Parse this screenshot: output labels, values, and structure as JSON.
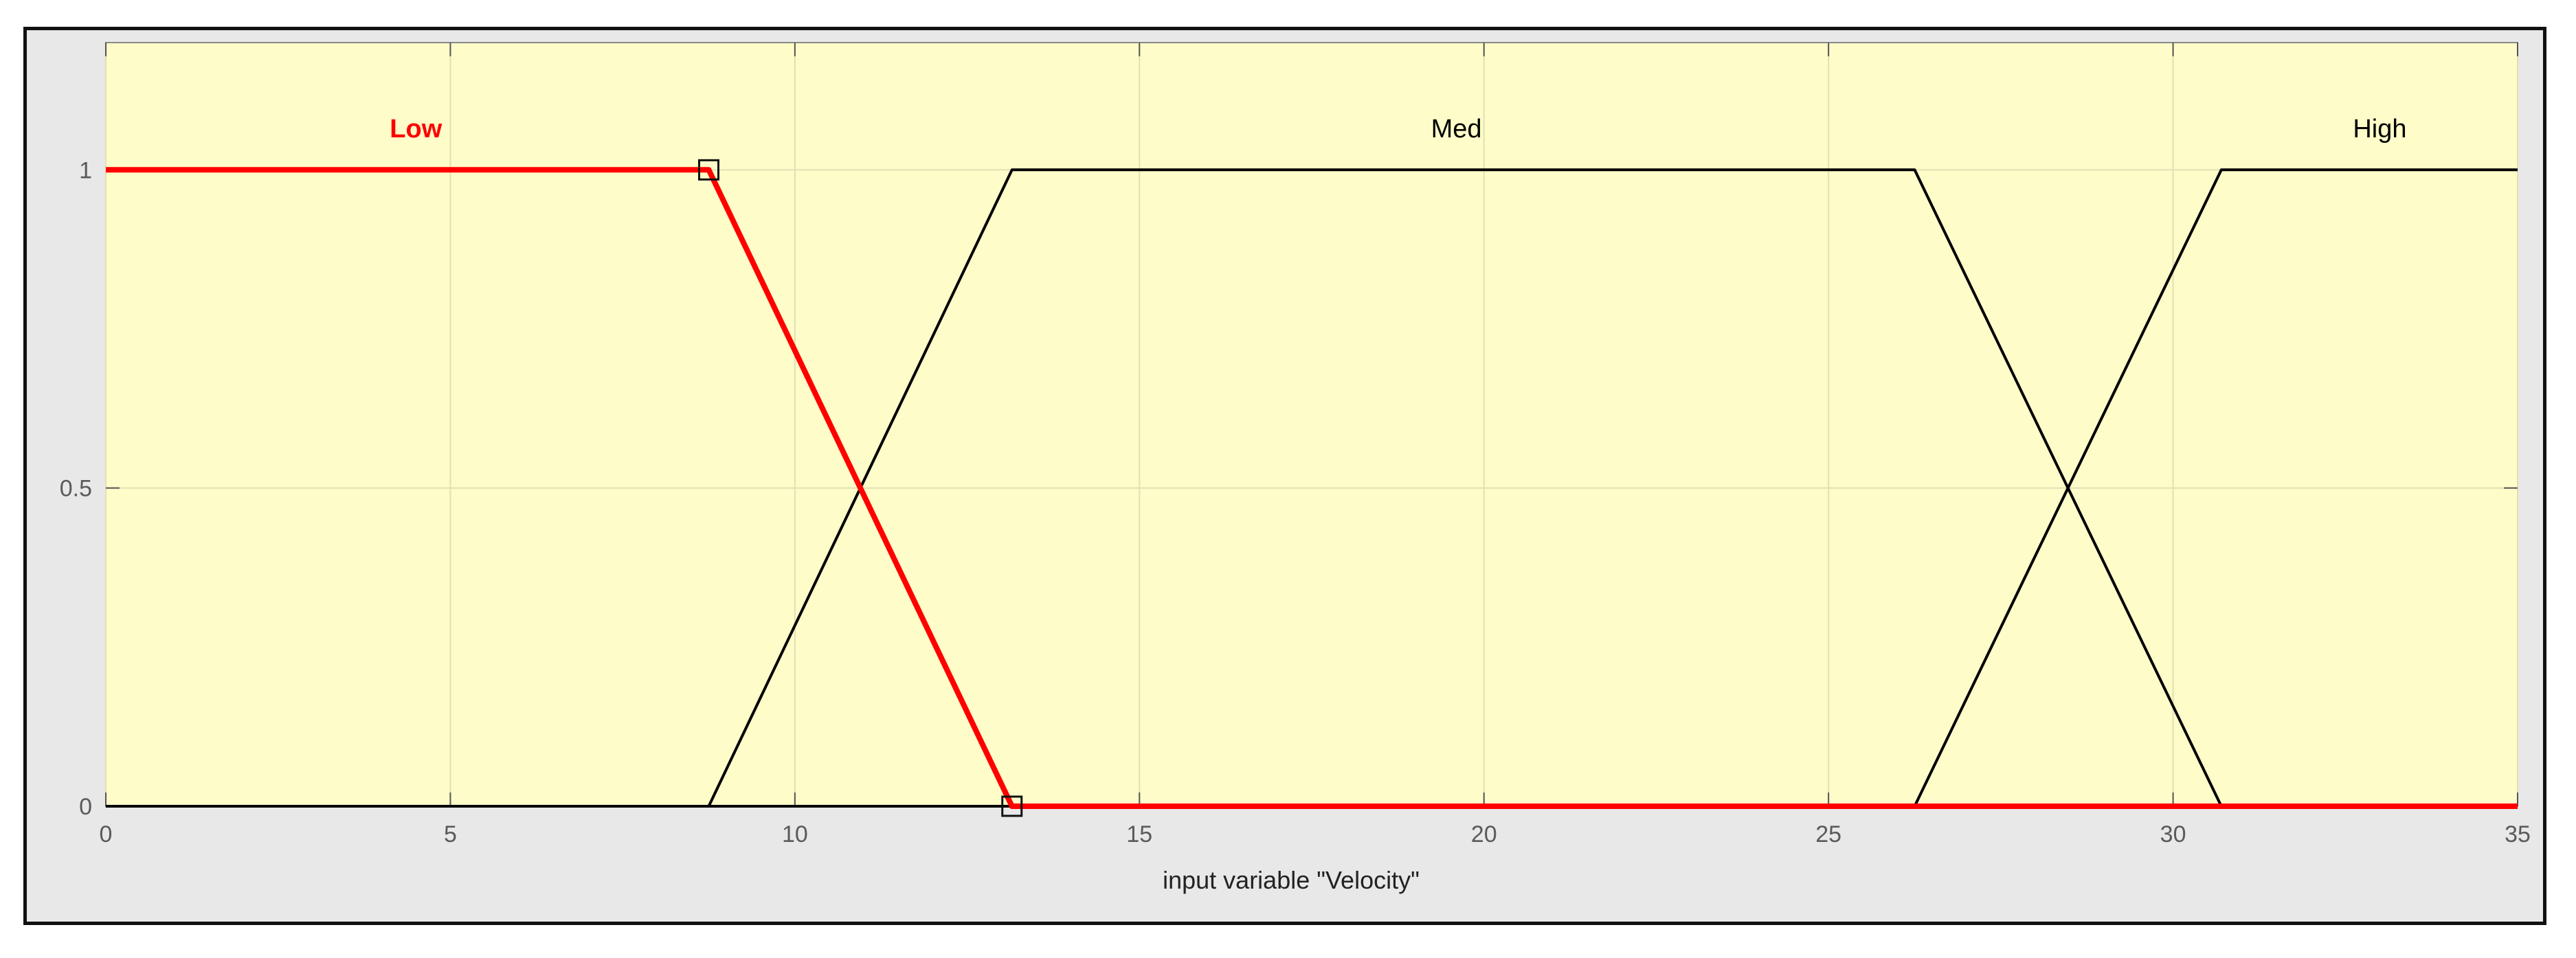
{
  "chart_data": {
    "type": "line",
    "xlabel": "input variable \"Velocity\"",
    "ylabel": "",
    "xlim": [
      0,
      35
    ],
    "ylim": [
      0,
      1.2
    ],
    "x_ticks": [
      0,
      5,
      10,
      15,
      20,
      25,
      30,
      35
    ],
    "y_ticks": [
      0,
      0.5,
      1
    ],
    "grid": true,
    "series": [
      {
        "name": "Low",
        "points": [
          [
            0,
            1
          ],
          [
            8.75,
            1
          ],
          [
            13.15,
            0
          ],
          [
            35,
            0
          ]
        ],
        "color": "#ff0000",
        "selected": true,
        "handles": [
          [
            8.75,
            1
          ],
          [
            13.15,
            0
          ]
        ]
      },
      {
        "name": "Med",
        "points": [
          [
            0,
            0
          ],
          [
            8.75,
            0
          ],
          [
            13.15,
            1
          ],
          [
            26.25,
            1
          ],
          [
            30.7,
            0
          ],
          [
            35,
            0
          ]
        ],
        "color": "#000000",
        "selected": false
      },
      {
        "name": "High",
        "points": [
          [
            0,
            0
          ],
          [
            26.25,
            0
          ],
          [
            30.7,
            1
          ],
          [
            35,
            1
          ]
        ],
        "color": "#000000",
        "selected": false
      }
    ],
    "mf_labels": [
      {
        "text": "Low",
        "x": 4.5,
        "color": "#ff0000"
      },
      {
        "text": "Med",
        "x": 19.6,
        "color": "#000000"
      },
      {
        "text": "High",
        "x": 33,
        "color": "#000000"
      }
    ],
    "plot_background": "#fefcc8",
    "figure_background": "#e8e8e8"
  }
}
